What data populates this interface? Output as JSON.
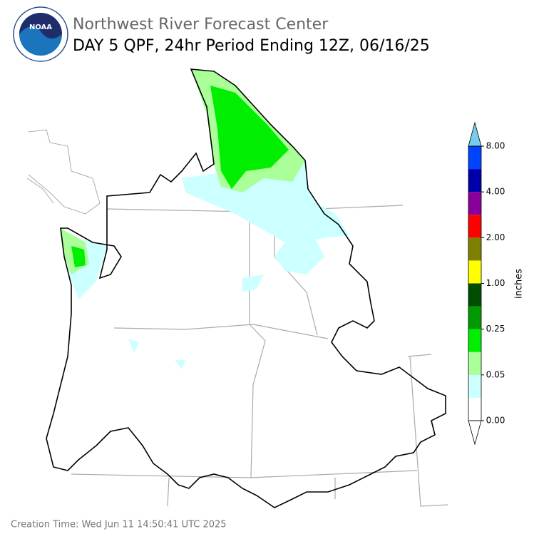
{
  "header": {
    "logo": "NOAA",
    "agency": "Northwest River Forecast Center",
    "title": "DAY 5 QPF, 24hr Period Ending 12Z, 06/16/25"
  },
  "colorbar": {
    "label": "inches",
    "colors": [
      "#ffffff",
      "#ccffff",
      "#aaff99",
      "#00ee00",
      "#009900",
      "#004d00",
      "#ffff00",
      "#808000",
      "#ff0000",
      "#880099",
      "#0000aa",
      "#0044ff"
    ],
    "over_color": "#77ccee",
    "under_color": "#ffffff",
    "ticks": [
      {
        "value": 0,
        "label": "0.00"
      },
      {
        "value": 0.05,
        "label": "0.05"
      },
      {
        "value": 0.25,
        "label": "0.25"
      },
      {
        "value": 1,
        "label": "1.00"
      },
      {
        "value": 2,
        "label": "2.00"
      },
      {
        "value": 4,
        "label": "4.00"
      },
      {
        "value": 8,
        "label": "8.00"
      }
    ]
  },
  "footer": {
    "creation_time": "Creation Time: Wed Jun 11 14:50:41 UTC 2025"
  }
}
